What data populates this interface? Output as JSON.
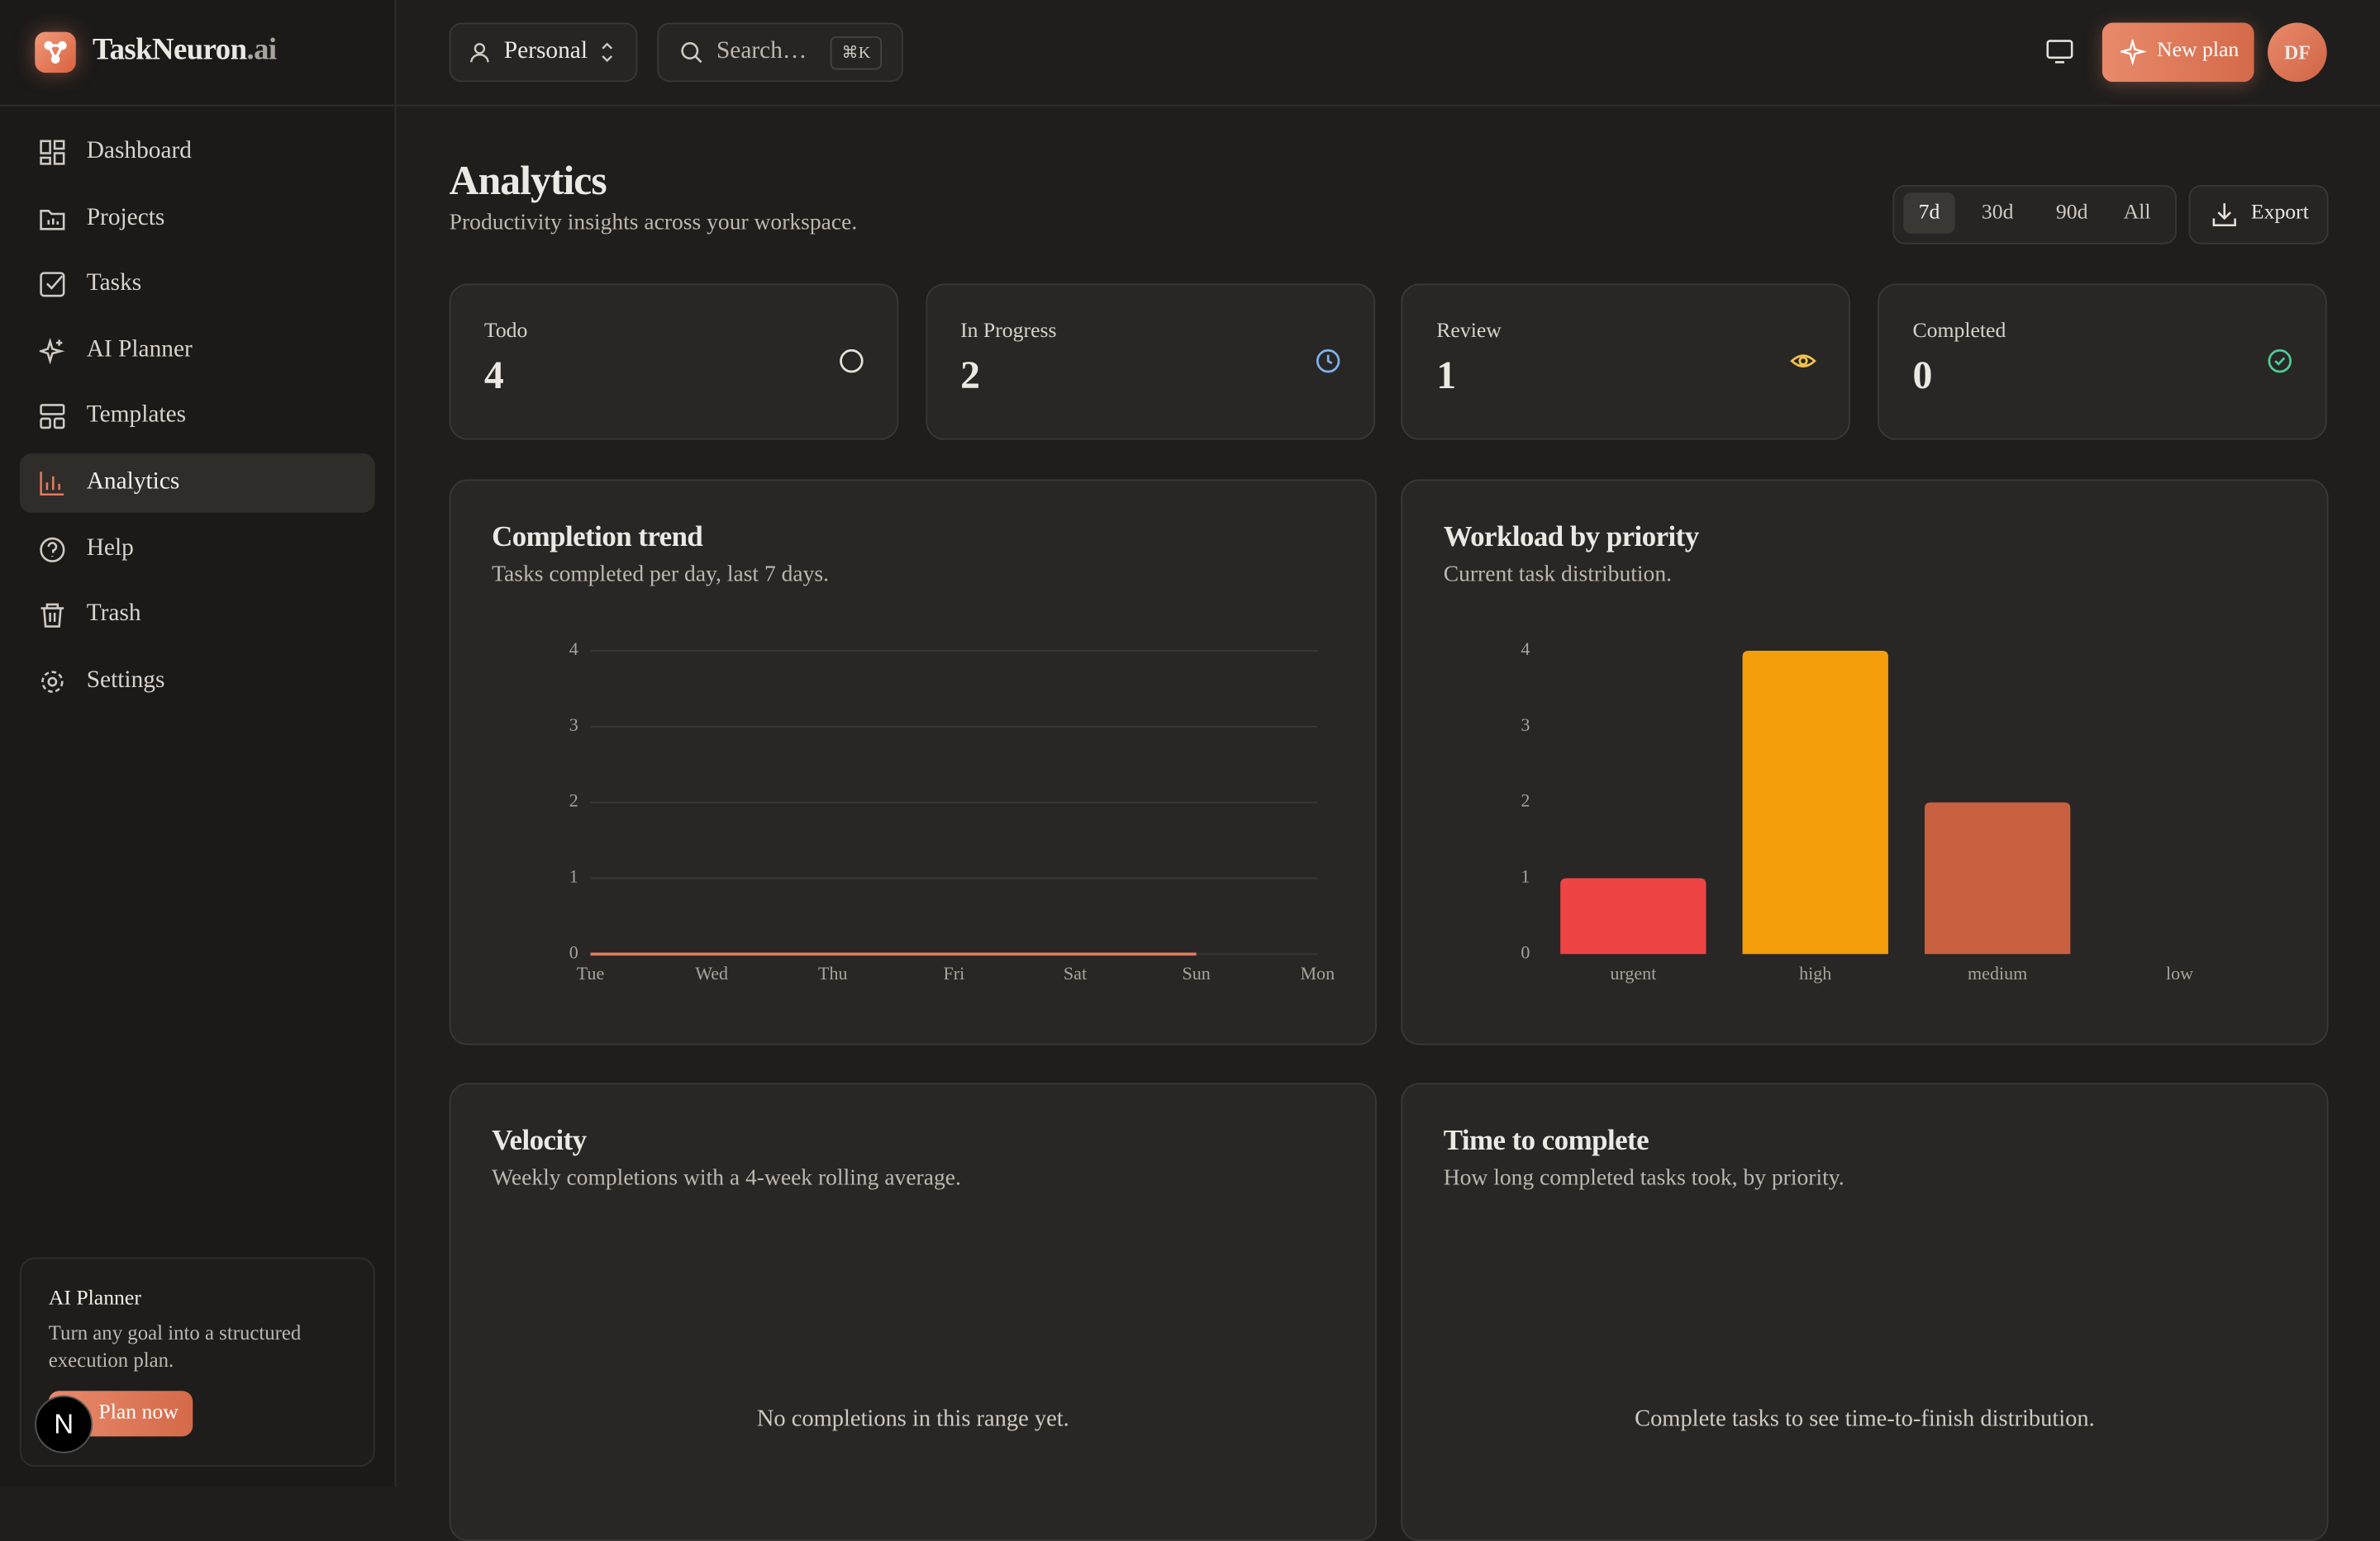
{
  "sidebar": {
    "brand": {
      "name": "TaskNeuron",
      "suffix": ".ai"
    },
    "nav": [
      "Dashboard",
      "Projects",
      "Tasks",
      "AI Planner",
      "Templates",
      "Analytics",
      "Help",
      "Trash",
      "Settings"
    ],
    "promo": {
      "title": "AI Planner",
      "text": "Turn any goal into a structured execution plan.",
      "button": "Plan now",
      "badge": "N"
    }
  },
  "topbar": {
    "workspace": "Personal",
    "search": "Search…",
    "shortcut": "⌘K",
    "new_plan": "New plan",
    "avatar": "DF"
  },
  "header": {
    "title": "Analytics",
    "subtitle": "Productivity insights across your workspace.",
    "ranges": [
      "7d",
      "30d",
      "90d",
      "All"
    ],
    "export": "Export"
  },
  "stats": [
    {
      "label": "Todo",
      "value": 4
    },
    {
      "label": "In Progress",
      "value": 2
    },
    {
      "label": "Review",
      "value": 1
    },
    {
      "label": "Completed",
      "value": 0
    }
  ],
  "chart_data": [
    {
      "type": "line",
      "title": "Completion trend",
      "subtitle": "Tasks completed per day, last 7 days.",
      "categories": [
        "Tue",
        "Wed",
        "Thu",
        "Fri",
        "Sat",
        "Sun",
        "Mon"
      ],
      "values": [
        0,
        0,
        0,
        0,
        0,
        0,
        null
      ],
      "color": "#e07a5f",
      "ylim": [
        0,
        4
      ],
      "yticks": [
        0,
        1,
        2,
        3,
        4
      ],
      "grid": true
    },
    {
      "type": "bar",
      "title": "Workload by priority",
      "subtitle": "Current task distribution.",
      "categories": [
        "urgent",
        "high",
        "medium",
        "low"
      ],
      "values": [
        1,
        4,
        2,
        0
      ],
      "colors": [
        "#ef4444",
        "#f59e0b",
        "#c9603f",
        "#8a8580"
      ],
      "ylim": [
        0,
        4
      ],
      "yticks": [
        0,
        1,
        2,
        3,
        4
      ],
      "grid": false
    }
  ],
  "panels": [
    {
      "title": "Velocity",
      "subtitle": "Weekly completions with a 4-week rolling average.",
      "empty": "No completions in this range yet."
    },
    {
      "title": "Time to complete",
      "subtitle": "How long completed tasks took, by priority.",
      "empty": "Complete tasks to see time-to-finish distribution."
    }
  ]
}
